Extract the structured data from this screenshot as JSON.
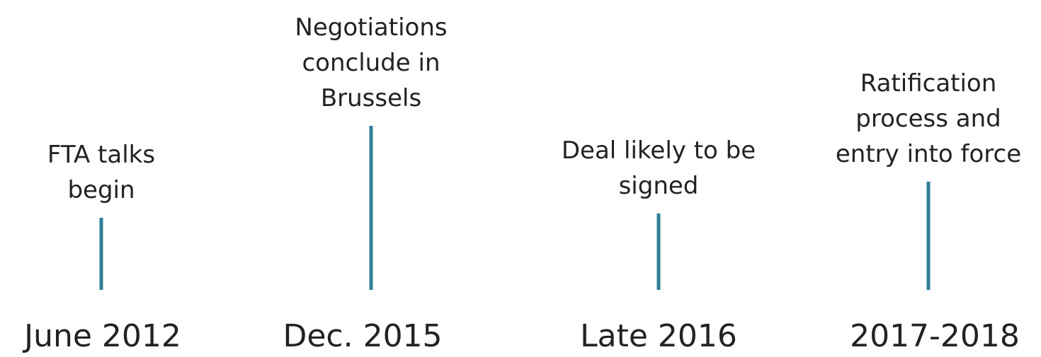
{
  "timeline": {
    "events": [
      {
        "label": [
          "FTA talks",
          "begin"
        ],
        "date": "June 2012"
      },
      {
        "label": [
          "Negotiations",
          "conclude in",
          "Brussels"
        ],
        "date": "Dec. 2015"
      },
      {
        "label": [
          "Deal likely to be",
          "signed"
        ],
        "date": "Late 2016"
      },
      {
        "label": [
          "Ratification",
          "process and",
          "entry into force"
        ],
        "date": "2017-2018"
      }
    ]
  }
}
